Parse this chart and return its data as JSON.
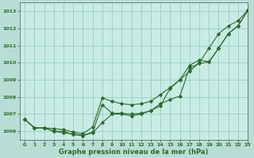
{
  "xlabel": "Graphe pression niveau de la mer (hPa)",
  "background_color": "#b8ddd4",
  "plot_bg_color": "#c8ece4",
  "grid_color": "#90c8bc",
  "line_color": "#2d6a2d",
  "ylim": [
    1005.5,
    1013.5
  ],
  "xlim": [
    -0.5,
    23
  ],
  "yticks": [
    1006,
    1007,
    1008,
    1009,
    1010,
    1011,
    1012,
    1013
  ],
  "xticks": [
    0,
    1,
    2,
    3,
    4,
    5,
    6,
    7,
    8,
    9,
    10,
    11,
    12,
    13,
    14,
    15,
    16,
    17,
    18,
    19,
    20,
    21,
    22,
    23
  ],
  "series": [
    [
      1006.7,
      1006.2,
      1006.2,
      1006.0,
      1006.0,
      1005.8,
      1005.75,
      1005.9,
      1006.5,
      1007.0,
      1007.0,
      1006.9,
      1007.0,
      1007.2,
      1007.5,
      1008.5,
      1009.0,
      1009.5,
      1010.0,
      1010.85,
      1011.7,
      1012.15,
      1012.45,
      1013.05
    ],
    [
      1006.7,
      1006.2,
      1006.2,
      1006.0,
      1005.9,
      1005.85,
      1005.75,
      1005.95,
      1007.55,
      1007.05,
      1007.05,
      1007.0,
      1007.05,
      1007.2,
      1007.6,
      1007.85,
      1008.05,
      1009.7,
      1009.95,
      1010.05,
      1010.85,
      1011.7,
      1012.15,
      1013.05
    ],
    [
      1006.7,
      1006.2,
      1006.2,
      1006.15,
      1006.1,
      1005.95,
      1005.85,
      1006.25,
      1007.95,
      1007.75,
      1007.6,
      1007.55,
      1007.6,
      1007.75,
      1008.15,
      1008.55,
      1009.0,
      1009.85,
      1010.15,
      1010.05,
      1010.85,
      1011.7,
      1012.15,
      1013.05
    ]
  ]
}
